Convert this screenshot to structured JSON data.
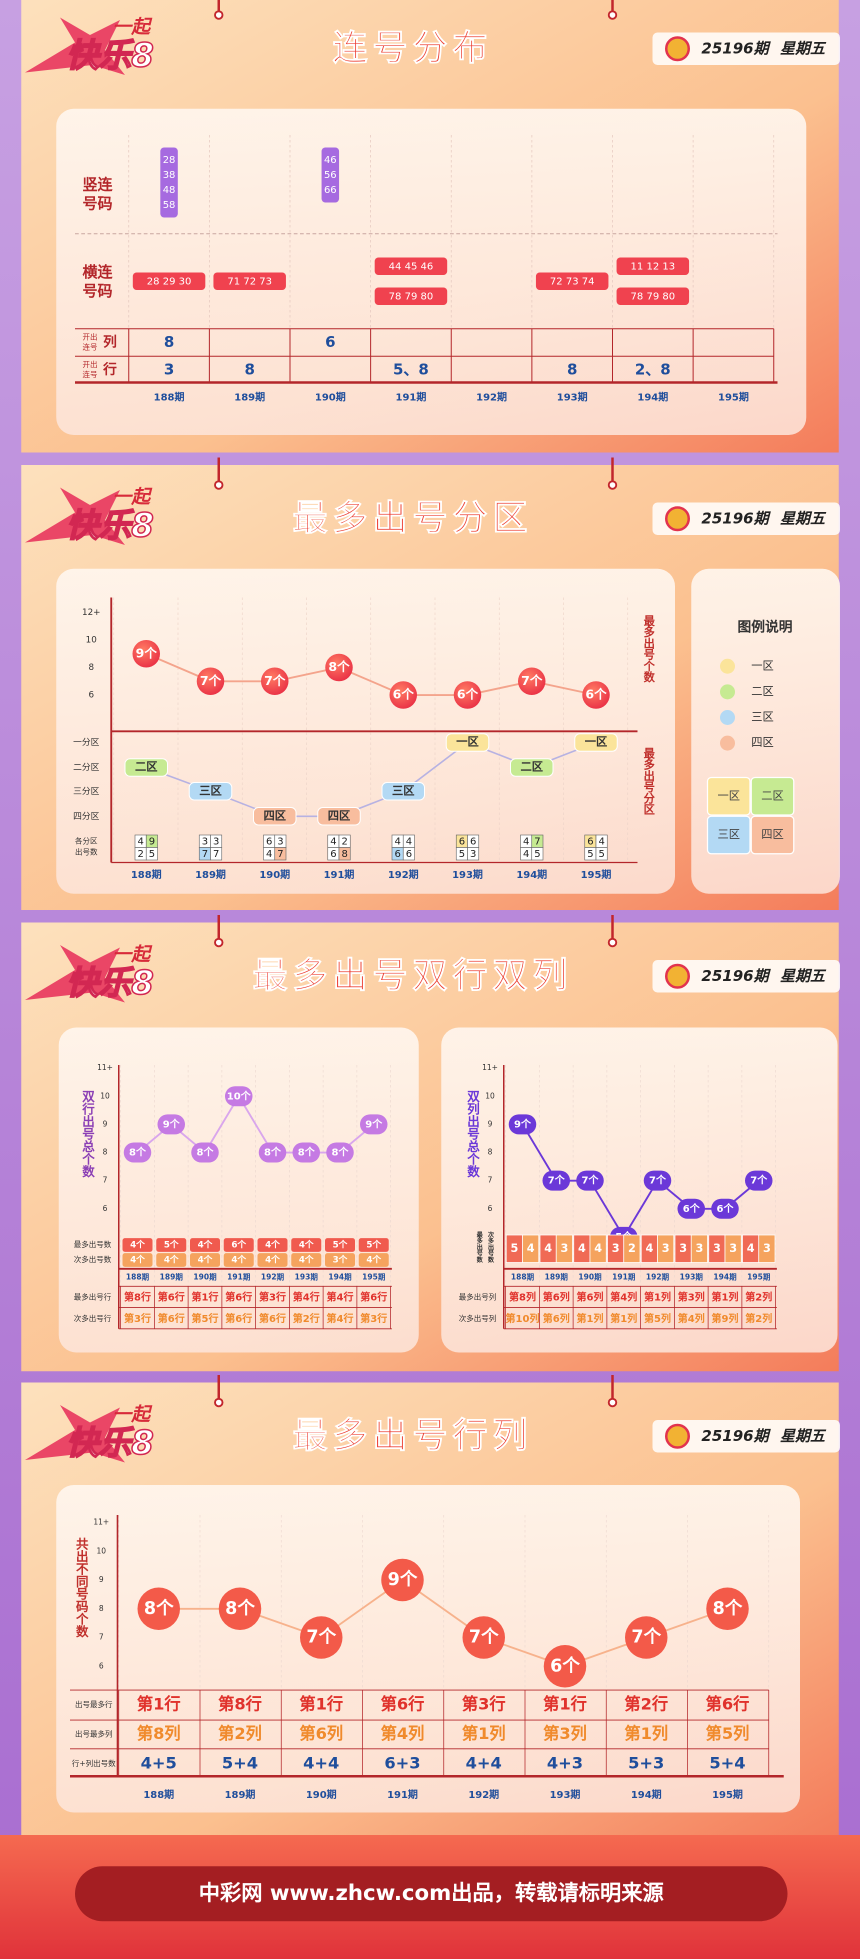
{
  "consecutive": {
    "header": {
      "logo_top": "一起",
      "logo": "快乐8",
      "title": "连号分布",
      "issue": "25196期",
      "weekday": "星期五"
    },
    "row_labels": {
      "vertical": [
        "竖连",
        "号码"
      ],
      "horizontal": [
        "横连",
        "号码"
      ],
      "col_count": {
        "small": [
          "开出",
          "连号"
        ],
        "big": "列"
      },
      "row_count": {
        "small": [
          "开出",
          "连号"
        ],
        "big": "行"
      }
    },
    "vertical": [
      [
        "28",
        "38",
        "48",
        "58"
      ],
      [],
      [
        "46",
        "56",
        "66"
      ],
      [],
      [],
      [],
      [],
      []
    ],
    "horizontal": [
      [
        "28 29 30"
      ],
      [
        "71 72 73"
      ],
      [],
      [
        "44 45 46",
        "78 79 80"
      ],
      [],
      [
        "72 73 74"
      ],
      [
        "11 12 13",
        "78 79 80"
      ],
      []
    ],
    "col_count": [
      "8",
      null,
      "6",
      null,
      null,
      null,
      null,
      null
    ],
    "row_count": [
      "3",
      "8",
      null,
      "5、8",
      null,
      "8",
      "2、8",
      null
    ],
    "periods": [
      "188期",
      "189期",
      "190期",
      "191期",
      "192期",
      "193期",
      "194期",
      "195期"
    ]
  },
  "zone": {
    "header": {
      "logo_top": "一起",
      "logo": "快乐8",
      "title": "最多出号分区",
      "issue": "25196期",
      "weekday": "星期五"
    },
    "top_axis_label": "最多出号个数",
    "yticks": [
      {
        "value": 12,
        "label": "12+"
      },
      10,
      8,
      6
    ],
    "max_counts": [
      9,
      7,
      7,
      8,
      6,
      6,
      7,
      6
    ],
    "max_count_labels": [
      "9个",
      "7个",
      "7个",
      "8个",
      "6个",
      "6个",
      "7个",
      "6个"
    ],
    "bottom_axis_label": "最多出号分区",
    "zone_levels": [
      "一分区",
      "二分区",
      "三分区",
      "四分区"
    ],
    "zones": [
      "二区",
      "三区",
      "四区",
      "四区",
      "三区",
      "一区",
      "二区",
      "一区"
    ],
    "counts_label": [
      "各分区",
      "出号数"
    ],
    "counts": [
      [
        4,
        9,
        2,
        5
      ],
      [
        3,
        3,
        7,
        7
      ],
      [
        6,
        3,
        4,
        7
      ],
      [
        4,
        2,
        6,
        8
      ],
      [
        4,
        4,
        6,
        6
      ],
      [
        6,
        6,
        5,
        3
      ],
      [
        4,
        7,
        4,
        5
      ],
      [
        6,
        4,
        5,
        5
      ]
    ],
    "periods": [
      "188期",
      "189期",
      "190期",
      "191期",
      "192期",
      "193期",
      "194期",
      "195期"
    ],
    "legend": {
      "title": "图例说明",
      "items": [
        "一区",
        "二区",
        "三区",
        "四区"
      ],
      "colors": [
        "#fbe49a",
        "#c6ea92",
        "#b3d9f4",
        "#f8bd9e"
      ],
      "grid_items": [
        "一区",
        "二区",
        "三区",
        "四区"
      ]
    }
  },
  "double": {
    "header": {
      "logo_top": "一起",
      "logo": "快乐8",
      "title": "最多出号双行双列",
      "issue": "25196期",
      "weekday": "星期五"
    },
    "left": {
      "axis_label": "双行出号总个数",
      "yticks": [
        {
          "value": 11,
          "label": "11+"
        },
        10,
        9,
        8,
        7,
        6
      ],
      "totals": [
        8,
        9,
        8,
        10,
        8,
        8,
        8,
        9
      ],
      "total_labels": [
        "8个",
        "9个",
        "8个",
        "10个",
        "8个",
        "8个",
        "8个",
        "9个"
      ],
      "count_labels": [
        "最多出号数",
        "次多出号数"
      ],
      "max_counts": [
        "4个",
        "5个",
        "4个",
        "6个",
        "4个",
        "4个",
        "5个",
        "5个"
      ],
      "second_counts": [
        "4个",
        "4个",
        "4个",
        "4个",
        "4个",
        "4个",
        "3个",
        "4个"
      ],
      "periods": [
        "188期",
        "189期",
        "190期",
        "191期",
        "192期",
        "193期",
        "194期",
        "195期"
      ],
      "pos_labels": [
        "最多出号行",
        "次多出号行"
      ],
      "max_pos": [
        "第8行",
        "第6行",
        "第1行",
        "第6行",
        "第3行",
        "第4行",
        "第4行",
        "第6行"
      ],
      "second_pos": [
        "第3行",
        "第6行",
        "第5行",
        "第6行",
        "第6行",
        "第2行",
        "第4行",
        "第3行"
      ]
    },
    "right": {
      "axis_label": "双列出号总个数",
      "yticks": [
        {
          "value": 11,
          "label": "11+"
        },
        10,
        9,
        8,
        7,
        6
      ],
      "totals": [
        9,
        7,
        7,
        5,
        7,
        6,
        6,
        7
      ],
      "total_labels": [
        "9个",
        "7个",
        "7个",
        "5个",
        "7个",
        "6个",
        "6个",
        "7个"
      ],
      "count_labels": [
        "最多出号数",
        "次多出号数"
      ],
      "max_counts": [
        5,
        4,
        4,
        3,
        4,
        3,
        3,
        4
      ],
      "second_counts": [
        4,
        3,
        4,
        2,
        3,
        3,
        3,
        3
      ],
      "periods": [
        "188期",
        "189期",
        "190期",
        "191期",
        "192期",
        "193期",
        "194期",
        "195期"
      ],
      "pos_labels": [
        "最多出号列",
        "次多出号列"
      ],
      "max_pos": [
        "第8列",
        "第6列",
        "第6列",
        "第4列",
        "第1列",
        "第3列",
        "第1列",
        "第2列"
      ],
      "second_pos": [
        "第10列",
        "第6列",
        "第1列",
        "第1列",
        "第5列",
        "第4列",
        "第9列",
        "第2列"
      ]
    }
  },
  "rowcol": {
    "header": {
      "logo_top": "一起",
      "logo": "快乐8",
      "title": "最多出号行列",
      "issue": "25196期",
      "weekday": "星期五"
    },
    "axis_label": "共出不同号码个数",
    "yticks": [
      {
        "value": 11,
        "label": "11+"
      },
      10,
      9,
      8,
      7,
      6
    ],
    "totals": [
      8,
      8,
      7,
      9,
      7,
      6,
      7,
      8
    ],
    "total_labels": [
      "8个",
      "8个",
      "7个",
      "9个",
      "7个",
      "6个",
      "7个",
      "8个"
    ],
    "row_labels": [
      "出号最多行",
      "出号最多列",
      "行+列出号数"
    ],
    "max_rows": [
      "第1行",
      "第8行",
      "第1行",
      "第6行",
      "第3行",
      "第1行",
      "第2行",
      "第6行"
    ],
    "max_cols": [
      "第8列",
      "第2列",
      "第6列",
      "第4列",
      "第1列",
      "第3列",
      "第1列",
      "第5列"
    ],
    "sums": [
      "4+5",
      "5+4",
      "4+4",
      "6+3",
      "4+4",
      "4+3",
      "5+3",
      "5+4"
    ],
    "periods": [
      "188期",
      "189期",
      "190期",
      "191期",
      "192期",
      "193期",
      "194期",
      "195期"
    ]
  },
  "footer": "中彩网 www.zhcw.com出品，转载请标明来源"
}
